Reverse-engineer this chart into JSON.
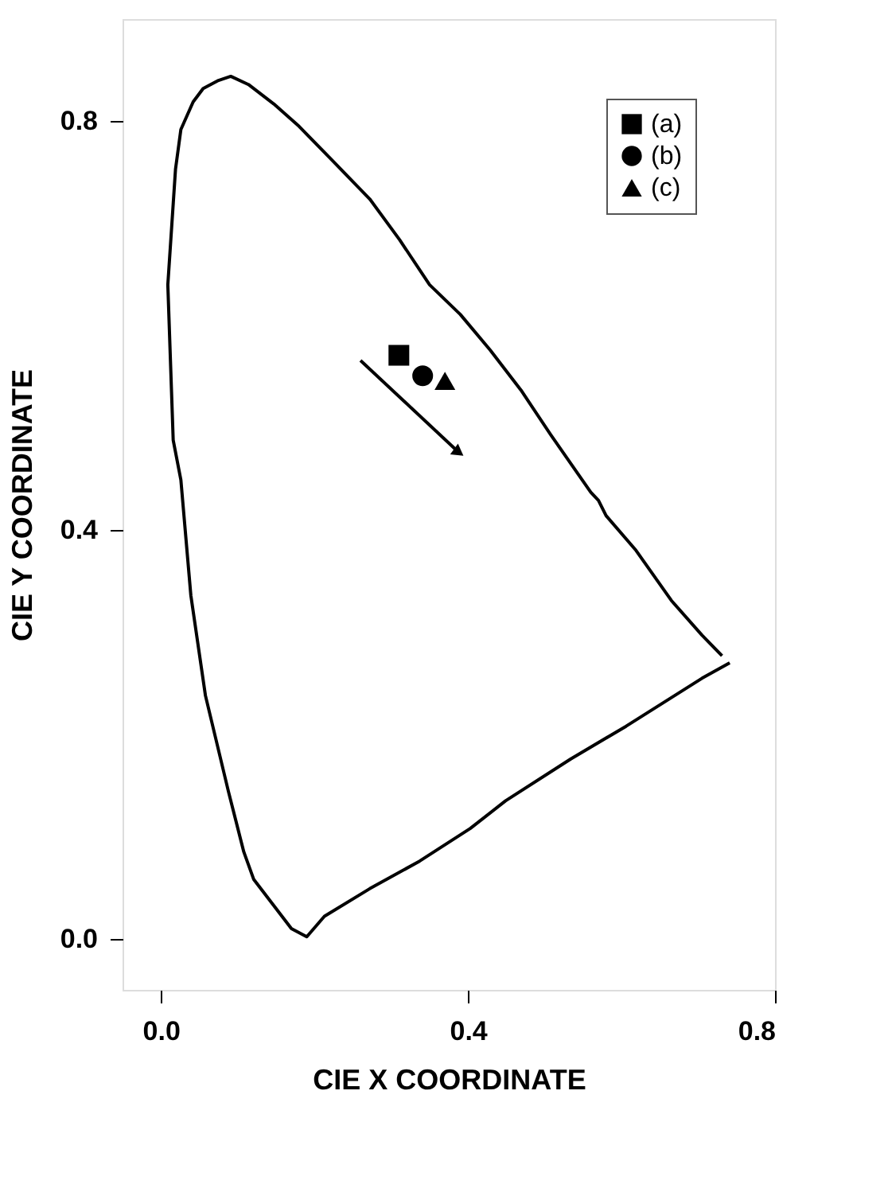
{
  "chart_data": {
    "type": "scatter",
    "xlabel": "CIE X COORDINATE",
    "ylabel": "CIE Y COORDINATE",
    "xlim": [
      -0.05,
      0.8
    ],
    "ylim": [
      -0.05,
      0.9
    ],
    "xticks": [
      {
        "value": 0,
        "label": "0.0"
      },
      {
        "value": 0.4,
        "label": "0.4"
      },
      {
        "value": 0.8,
        "label": "0.8"
      }
    ],
    "yticks": [
      {
        "value": 0,
        "label": "0.0"
      },
      {
        "value": 0.4,
        "label": "0.4"
      },
      {
        "value": 0.8,
        "label": "0.8"
      }
    ],
    "legend": "top right",
    "series": [
      {
        "type": "line",
        "color": "#000000",
        "marker": "none",
        "line_style": "solid",
        "x": [
          0.731,
          0.705,
          0.665,
          0.619,
          0.58,
          0.57,
          0.56,
          0.508,
          0.469,
          0.429,
          0.39,
          0.35,
          0.311,
          0.272,
          0.219,
          0.18,
          0.147,
          0.114,
          0.091,
          0.075,
          0.055,
          0.042,
          0.026,
          0.019,
          0.009,
          0.016,
          0.026,
          0.039,
          0.058,
          0.088,
          0.108,
          0.121,
          0.17,
          0.19,
          0.213,
          0.272,
          0.337,
          0.403,
          0.449,
          0.534,
          0.606,
          0.705,
          0.741
        ],
        "values": [
          0.277,
          0.297,
          0.331,
          0.38,
          0.414,
          0.429,
          0.437,
          0.493,
          0.537,
          0.576,
          0.611,
          0.64,
          0.684,
          0.724,
          0.765,
          0.795,
          0.817,
          0.836,
          0.844,
          0.84,
          0.832,
          0.819,
          0.792,
          0.753,
          0.64,
          0.488,
          0.449,
          0.336,
          0.238,
          0.144,
          0.085,
          0.058,
          0.01,
          0.002,
          0.022,
          0.049,
          0.076,
          0.108,
          0.135,
          0.176,
          0.208,
          0.255,
          0.27
        ]
      },
      {
        "name": "(a)",
        "color": "#000000",
        "marker": "square",
        "x": [
          0.31
        ],
        "values": [
          0.571
        ]
      },
      {
        "name": "(b)",
        "color": "#000000",
        "marker": "circle",
        "x": [
          0.341
        ],
        "values": [
          0.551
        ]
      },
      {
        "name": "(c)",
        "color": "#000000",
        "marker": "triangle",
        "x": [
          0.37
        ],
        "values": [
          0.546
        ]
      }
    ]
  }
}
